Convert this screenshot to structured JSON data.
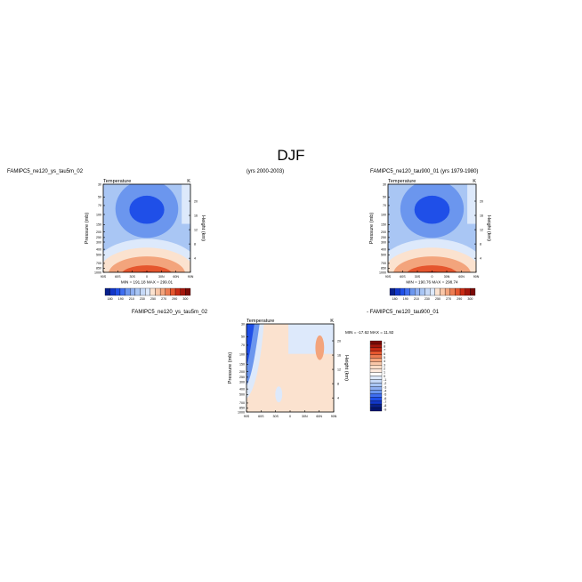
{
  "figure": {
    "title": "DJF",
    "left_header": "FAMIPC5_ne120_ys_tau5m_02",
    "center_header": "(yrs 2000-2003)",
    "right_header": "FAMIPC5_ne120_tau900_01  (yrs 1979-1980)",
    "diff_left_header": "FAMIPC5_ne120_ys_tau5m_02",
    "diff_right_header": "-  FAMIPC5_ne120_tau900_01"
  },
  "colors": {
    "cold_deep": "#1f4fe8",
    "cold": "#6b96ee",
    "cool": "#a9c6f4",
    "pale": "#dde9fb",
    "warm_pale": "#fbe2cf",
    "warm": "#f3a47c",
    "hot": "#e5562e",
    "hottest": "#c92b14",
    "frame": "#000000"
  },
  "chart_data": [
    {
      "type": "heatmap",
      "panel": "left",
      "title": "Temperature",
      "units": "K",
      "xlabel": "",
      "ylabel": "Pressure (mb)",
      "ylabel_right": "Height (km)",
      "x_ticks": [
        "90S",
        "60S",
        "30S",
        "0",
        "30N",
        "60N",
        "90N"
      ],
      "xlim": [
        -90,
        90
      ],
      "y_ticks": [
        "30",
        "50",
        "70",
        "100",
        "150",
        "200",
        "250",
        "300",
        "400",
        "500",
        "700",
        "850",
        "1000"
      ],
      "ylim_mb": [
        1000,
        30
      ],
      "height_ticks_km": [
        "4",
        "8",
        "12",
        "16",
        "20"
      ],
      "stats": "MIN = 191.18   MAX = 299.01",
      "min": 191.18,
      "max": 299.01,
      "colorbar": {
        "levels": [
          "180",
          "190",
          "210",
          "230",
          "250",
          "270",
          "290",
          "300"
        ],
        "colors": [
          "#08208c",
          "#1237c9",
          "#1f4fe8",
          "#3f6ef0",
          "#6b96ee",
          "#8fb0f2",
          "#a9c6f4",
          "#c6d9f7",
          "#dde9fb",
          "#fbe2cf",
          "#f9c7a8",
          "#f3a47c",
          "#ec7c52",
          "#e5562e",
          "#c92b14",
          "#a4160c",
          "#7a0a06"
        ]
      }
    },
    {
      "type": "heatmap",
      "panel": "right",
      "title": "Temperature",
      "units": "K",
      "xlabel": "",
      "ylabel": "Pressure (mb)",
      "ylabel_right": "Height (km)",
      "x_ticks": [
        "90S",
        "60S",
        "30S",
        "0",
        "30N",
        "60N",
        "90N"
      ],
      "xlim": [
        -90,
        90
      ],
      "y_ticks": [
        "30",
        "50",
        "70",
        "100",
        "150",
        "200",
        "250",
        "300",
        "400",
        "500",
        "700",
        "850",
        "1000"
      ],
      "ylim_mb": [
        1000,
        30
      ],
      "height_ticks_km": [
        "4",
        "8",
        "12",
        "16",
        "20"
      ],
      "stats": "MIN = 190.76   MAX = 298.74",
      "min": 190.76,
      "max": 298.74,
      "colorbar": {
        "levels": [
          "180",
          "190",
          "210",
          "230",
          "250",
          "270",
          "290",
          "300"
        ],
        "colors": [
          "#08208c",
          "#1237c9",
          "#1f4fe8",
          "#3f6ef0",
          "#6b96ee",
          "#8fb0f2",
          "#a9c6f4",
          "#c6d9f7",
          "#dde9fb",
          "#fbe2cf",
          "#f9c7a8",
          "#f3a47c",
          "#ec7c52",
          "#e5562e",
          "#c92b14",
          "#a4160c",
          "#7a0a06"
        ]
      }
    },
    {
      "type": "heatmap",
      "panel": "difference",
      "title": "Temperature",
      "units": "K",
      "xlabel": "",
      "ylabel": "Pressure (mb)",
      "ylabel_right": "Height (km)",
      "x_ticks": [
        "90S",
        "60S",
        "30S",
        "0",
        "30N",
        "60N",
        "90N"
      ],
      "xlim": [
        -90,
        90
      ],
      "y_ticks": [
        "30",
        "50",
        "70",
        "100",
        "150",
        "200",
        "250",
        "300",
        "400",
        "500",
        "700",
        "850",
        "1000"
      ],
      "ylim_mb": [
        1000,
        30
      ],
      "height_ticks_km": [
        "4",
        "8",
        "12",
        "16",
        "20"
      ],
      "stats": "MIN = -17.62   MAX = 11.92",
      "min": -17.62,
      "max": 11.92,
      "colorbar": {
        "levels": [
          "9",
          "8",
          "7",
          "6",
          "5",
          "4",
          "3",
          "2",
          "1",
          "0",
          "-1",
          "-2",
          "-3",
          "-4",
          "-5",
          "-6",
          "-7",
          "-8",
          "-9"
        ],
        "colors": [
          "#7a0a06",
          "#a4160c",
          "#c92b14",
          "#e5562e",
          "#ec7c52",
          "#f3a47c",
          "#f9c7a8",
          "#fbdcc6",
          "#fde9dc",
          "#ffffff",
          "#dde9fb",
          "#c6d9f7",
          "#a9c6f4",
          "#8fb0f2",
          "#6b96ee",
          "#3f6ef0",
          "#1f4fe8",
          "#1237c9",
          "#08208c",
          "#041570"
        ]
      }
    }
  ]
}
